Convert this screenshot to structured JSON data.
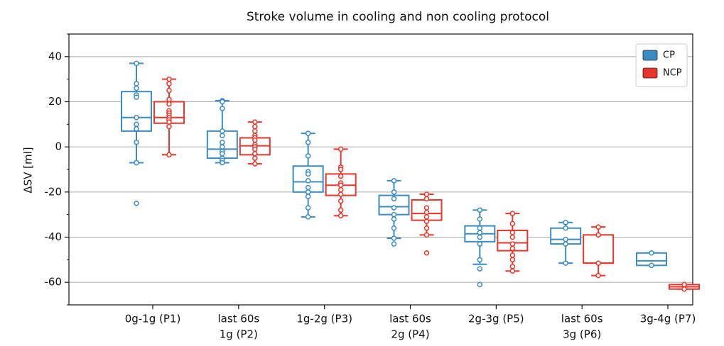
{
  "chart_data": {
    "type": "box",
    "title": "Stroke volume in cooling and non cooling protocol",
    "y_label": "ΔSV [ml]",
    "categories": [
      [
        "0g-1g (P1)"
      ],
      [
        "last 60s",
        "1g (P2)"
      ],
      [
        "1g-2g (P3)"
      ],
      [
        "last 60s",
        "2g (P4)"
      ],
      [
        "2g-3g (P5)"
      ],
      [
        "last 60s",
        "3g (P6)"
      ],
      [
        "3g-4g (P7)"
      ]
    ],
    "ylim": [
      -70,
      50
    ],
    "yticks": [
      -60,
      -40,
      -20,
      0,
      20,
      40
    ],
    "yticks_minor": [
      -70,
      -50,
      -30,
      -10,
      10,
      30,
      50
    ],
    "grid": true,
    "legend": "upper right",
    "series": [
      {
        "name": "CP",
        "color": "#3a8cc4",
        "boxes": [
          {
            "whislo": -7,
            "q1": 7,
            "med": 13,
            "q3": 24.5,
            "whishi": 37,
            "points": [
              37,
              28,
              26,
              23,
              22,
              13,
              10,
              8,
              2,
              -7,
              -25
            ]
          },
          {
            "whislo": -7,
            "q1": -5,
            "med": -1,
            "q3": 7,
            "whishi": 20.5,
            "points": [
              20.5,
              20,
              17,
              7,
              5,
              2,
              0,
              -2,
              -3,
              -5,
              -6,
              -7
            ]
          },
          {
            "whislo": -31,
            "q1": -20,
            "med": -15.5,
            "q3": -8.5,
            "whishi": 6,
            "points": [
              6,
              2,
              -4,
              -11,
              -12,
              -15,
              -18,
              -20,
              -22,
              -27,
              -31
            ]
          },
          {
            "whislo": -40.5,
            "q1": -30,
            "med": -26.5,
            "q3": -21.5,
            "whishi": -15,
            "points": [
              -15,
              -20,
              -23,
              -27,
              -30,
              -32,
              -36,
              -40.5,
              -43
            ]
          },
          {
            "whislo": -52,
            "q1": -42,
            "med": -38.5,
            "q3": -35,
            "whishi": -28,
            "points": [
              -28,
              -32,
              -36,
              -38,
              -40,
              -43,
              -50,
              -54,
              -61
            ]
          },
          {
            "whislo": -51.5,
            "q1": -43,
            "med": -41,
            "q3": -36,
            "whishi": -33.5,
            "points": [
              -33.5,
              -36,
              -41,
              -43,
              -51.5
            ]
          },
          {
            "whislo": -52.5,
            "q1": -52.5,
            "med": -50.5,
            "q3": -47,
            "whishi": -47,
            "points": [
              -47,
              -52.5
            ]
          }
        ]
      },
      {
        "name": "NCP",
        "color": "#e8362a",
        "boxes": [
          {
            "whislo": -3.5,
            "q1": 10.5,
            "med": 13,
            "q3": 20,
            "whishi": 30,
            "points": [
              30,
              28,
              25,
              21,
              19,
              16,
              15,
              14,
              13,
              12,
              11,
              9,
              -3.5
            ]
          },
          {
            "whislo": -7.5,
            "q1": -3.5,
            "med": 0.5,
            "q3": 4,
            "whishi": 11,
            "points": [
              11,
              9,
              7,
              5,
              4,
              3,
              1,
              0,
              -1,
              -3,
              -5,
              -7.5
            ]
          },
          {
            "whislo": -30.5,
            "q1": -21.5,
            "med": -17,
            "q3": -12,
            "whishi": -1,
            "points": [
              -1,
              -9,
              -10,
              -13,
              -16,
              -17,
              -19,
              -21,
              -24,
              -28,
              -30.5
            ]
          },
          {
            "whislo": -39,
            "q1": -32.5,
            "med": -29.5,
            "q3": -23.5,
            "whishi": -21,
            "points": [
              -21,
              -23,
              -27,
              -29,
              -31,
              -33,
              -36,
              -39,
              -47
            ]
          },
          {
            "whislo": -55,
            "q1": -46,
            "med": -42.5,
            "q3": -37,
            "whishi": -29.5,
            "points": [
              -29.5,
              -34,
              -38,
              -40,
              -43,
              -45,
              -48,
              -50,
              -53,
              -55
            ]
          },
          {
            "whislo": -57,
            "q1": -51.5,
            "med": -51.5,
            "q3": -39,
            "whishi": -35.5,
            "points": [
              -35.5,
              -39,
              -51.5,
              -57
            ]
          },
          {
            "whislo": -63,
            "q1": -63,
            "med": -62,
            "q3": -61,
            "whishi": -61,
            "points": [
              -61,
              -63
            ]
          }
        ]
      }
    ]
  }
}
